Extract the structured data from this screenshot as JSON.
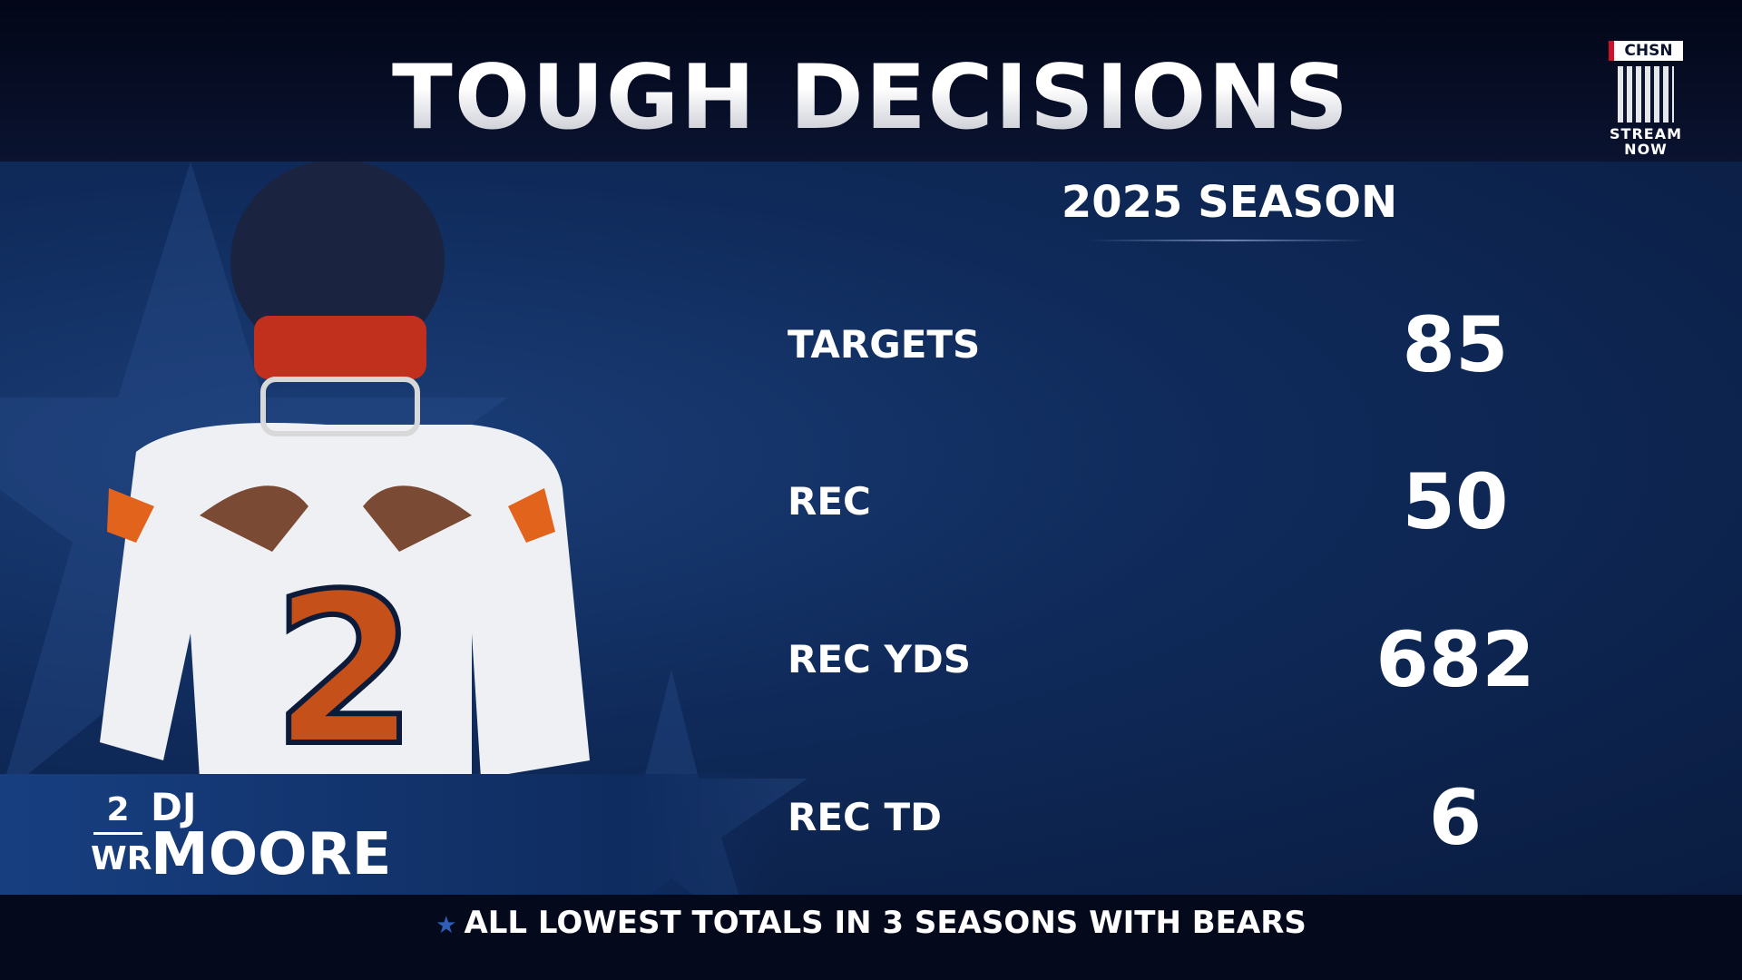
{
  "header": {
    "title": "TOUGH DECISIONS",
    "logo": "CHSN",
    "stream": [
      "STREAM",
      "NOW"
    ]
  },
  "season": "2025 SEASON",
  "stats": [
    {
      "label": "TARGETS",
      "value": "85"
    },
    {
      "label": "REC",
      "value": "50"
    },
    {
      "label": "REC YDS",
      "value": "682"
    },
    {
      "label": "REC TD",
      "value": "6"
    }
  ],
  "player": {
    "number": "2",
    "position": "WR",
    "first_name": "DJ",
    "last_name": "MOORE"
  },
  "footer": "ALL LOWEST TOTALS IN 3 SEASONS WITH BEARS"
}
